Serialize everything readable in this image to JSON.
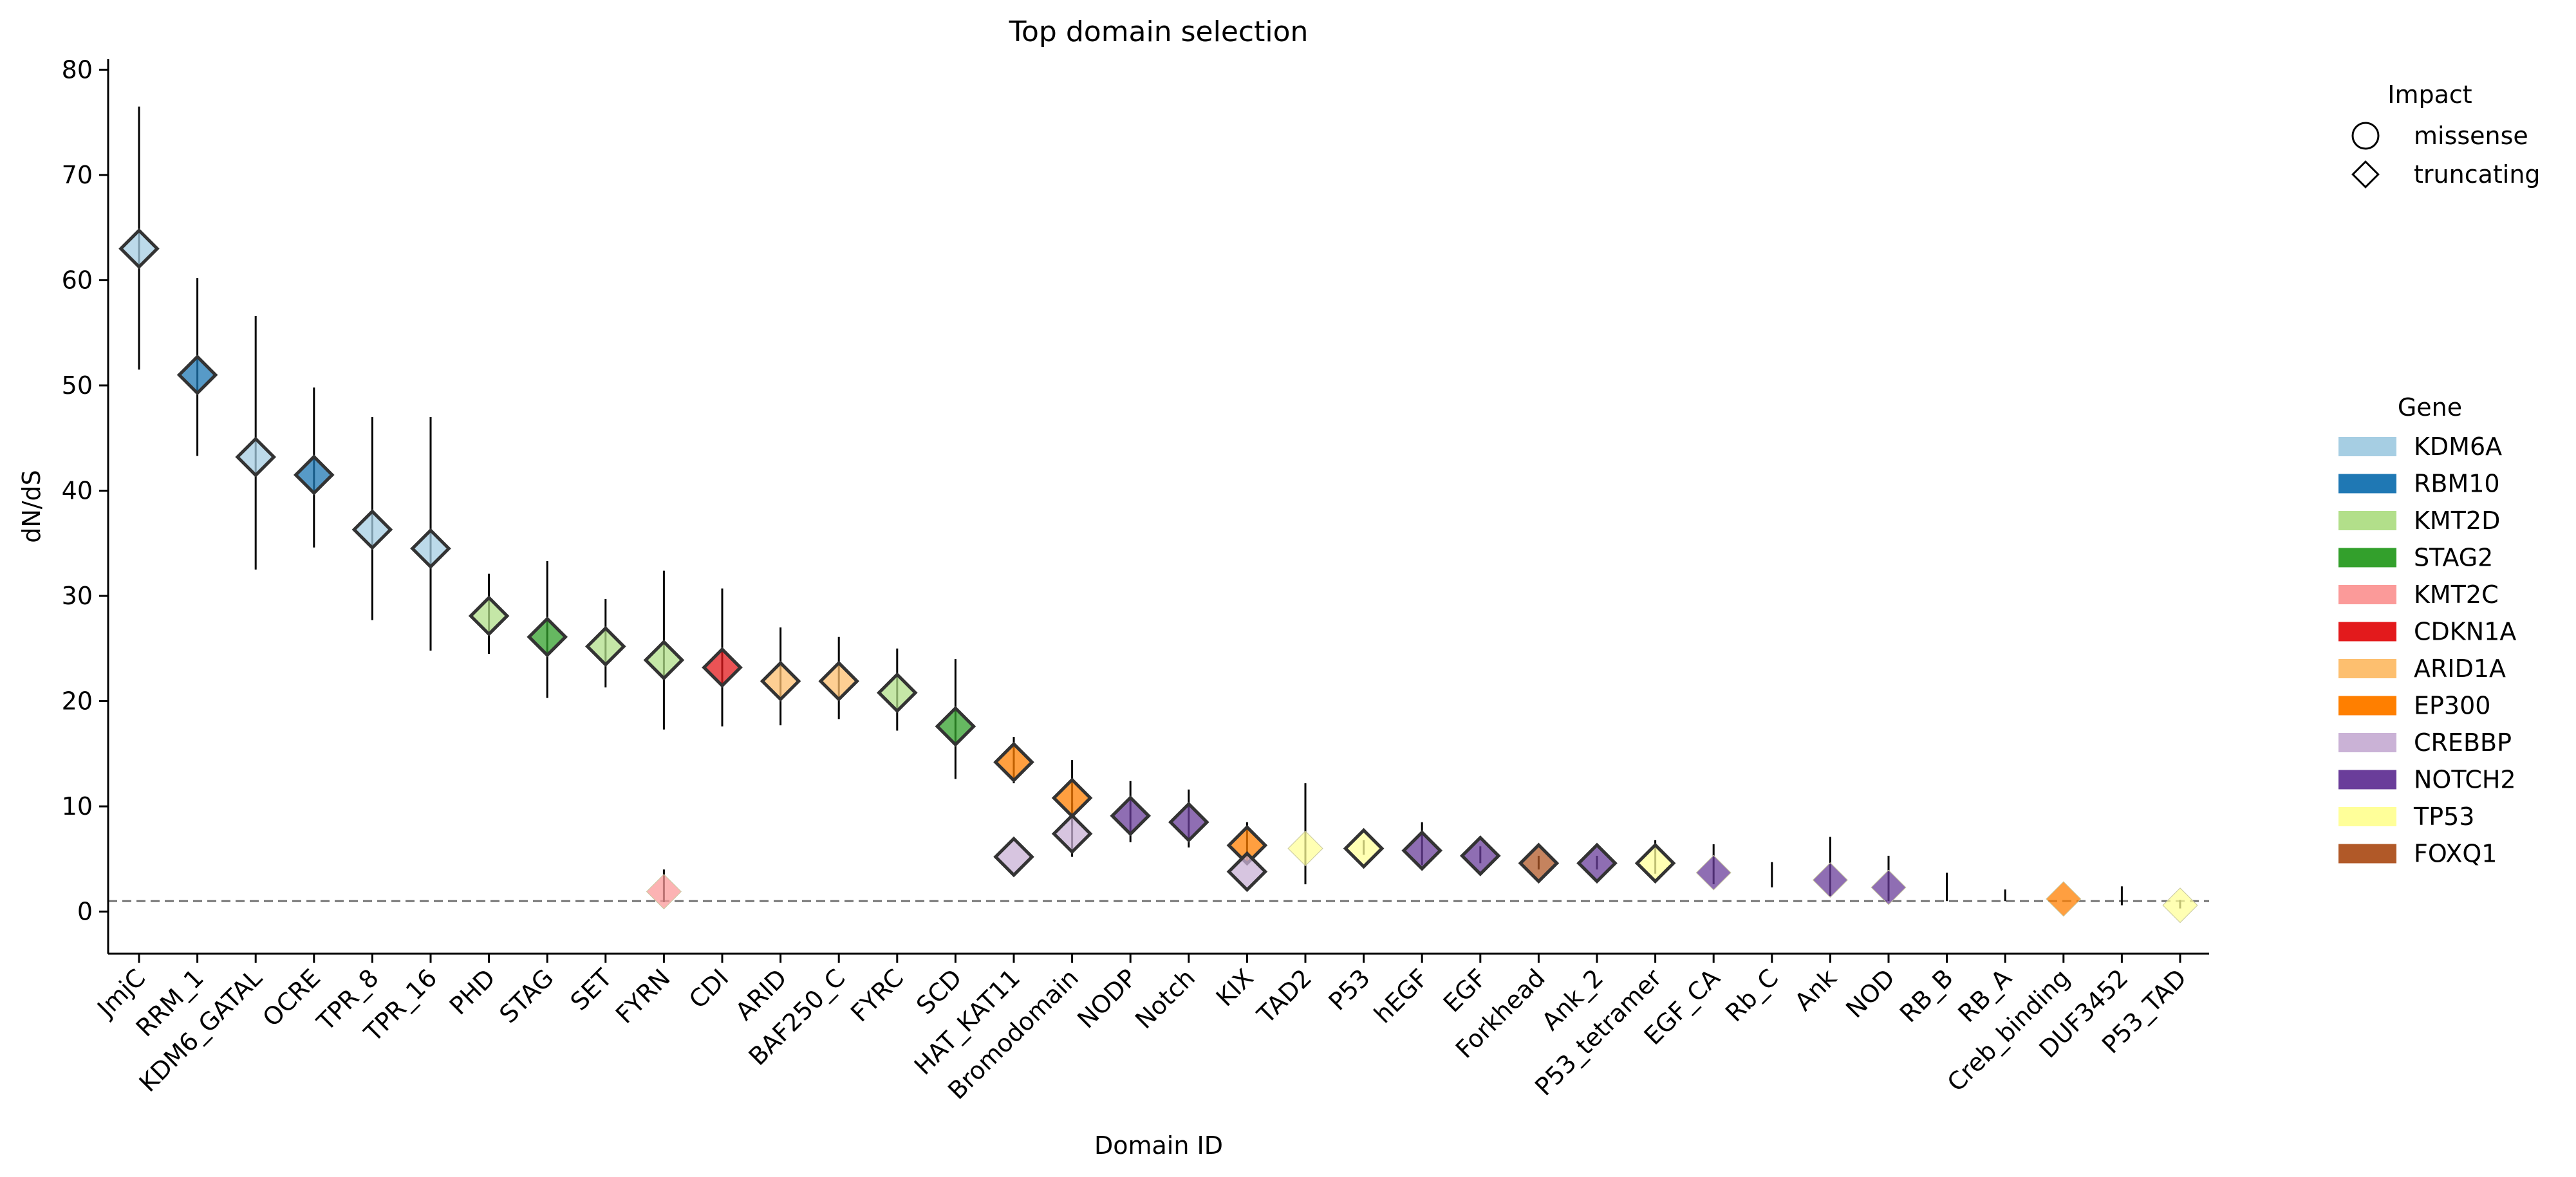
{
  "chart_data": {
    "type": "scatter",
    "title": "Top  domain selection",
    "xlabel": "Domain ID",
    "ylabel": "dN/dS",
    "ylim": [
      -4,
      81
    ],
    "yticks": [
      0,
      10,
      20,
      30,
      40,
      50,
      60,
      70,
      80
    ],
    "reference_line": 1,
    "categories": [
      "JmjC",
      "RRM_1",
      "KDM6_GATAL",
      "OCRE",
      "TPR_8",
      "TPR_16",
      "PHD",
      "STAG",
      "SET",
      "FYRN",
      "CDI",
      "ARID",
      "BAF250_C",
      "FYRC",
      "SCD",
      "HAT_KAT11",
      "Bromodomain",
      "NODP",
      "Notch",
      "KIX",
      "TAD2",
      "P53",
      "hEGF",
      "EGF",
      "Forkhead",
      "Ank_2",
      "P53_tetramer",
      "EGF_CA",
      "Rb_C",
      "Ank",
      "NOD",
      "RB_B",
      "RB_A",
      "Creb_binding",
      "DUF3452",
      "P53_TAD"
    ],
    "points": [
      {
        "domain": "JmjC",
        "gene": "KDM6A",
        "impact": "truncating",
        "value": 63,
        "low": 51.5,
        "high": 76.5
      },
      {
        "domain": "RRM_1",
        "gene": "RBM10",
        "impact": "truncating",
        "value": 51,
        "low": 43.3,
        "high": 60.2
      },
      {
        "domain": "KDM6_GATAL",
        "gene": "KDM6A",
        "impact": "truncating",
        "value": 43.2,
        "low": 32.5,
        "high": 56.6
      },
      {
        "domain": "OCRE",
        "gene": "RBM10",
        "impact": "truncating",
        "value": 41.5,
        "low": 34.6,
        "high": 49.8
      },
      {
        "domain": "TPR_8",
        "gene": "KDM6A",
        "impact": "truncating",
        "value": 36.3,
        "low": 27.7,
        "high": 47
      },
      {
        "domain": "TPR_16",
        "gene": "KDM6A",
        "impact": "truncating",
        "value": 34.5,
        "low": 24.8,
        "high": 47
      },
      {
        "domain": "PHD",
        "gene": "KMT2D",
        "impact": "truncating",
        "value": 28.1,
        "low": 24.5,
        "high": 32.1
      },
      {
        "domain": "STAG",
        "gene": "STAG2",
        "impact": "truncating",
        "value": 26.1,
        "low": 20.3,
        "high": 33.3
      },
      {
        "domain": "SET",
        "gene": "KMT2D",
        "impact": "truncating",
        "value": 25.2,
        "low": 21.3,
        "high": 29.7
      },
      {
        "domain": "FYRN",
        "gene": "KMT2D",
        "impact": "truncating",
        "value": 23.9,
        "low": 17.3,
        "high": 32.4
      },
      {
        "domain": "FYRN",
        "gene": "KMT2C",
        "impact": "missense",
        "value": 1.9,
        "low": 0.9,
        "high": 4
      },
      {
        "domain": "CDI",
        "gene": "CDKN1A",
        "impact": "truncating",
        "value": 23.2,
        "low": 17.6,
        "high": 30.7
      },
      {
        "domain": "ARID",
        "gene": "ARID1A",
        "impact": "truncating",
        "value": 21.9,
        "low": 17.7,
        "high": 27
      },
      {
        "domain": "BAF250_C",
        "gene": "ARID1A",
        "impact": "truncating",
        "value": 21.9,
        "low": 18.3,
        "high": 26.1
      },
      {
        "domain": "FYRC",
        "gene": "KMT2D",
        "impact": "truncating",
        "value": 20.8,
        "low": 17.2,
        "high": 25
      },
      {
        "domain": "SCD",
        "gene": "STAG2",
        "impact": "truncating",
        "value": 17.6,
        "low": 12.6,
        "high": 24
      },
      {
        "domain": "HAT_KAT11",
        "gene": "EP300",
        "impact": "truncating",
        "value": 14.2,
        "low": 12.2,
        "high": 16.6
      },
      {
        "domain": "HAT_KAT11",
        "gene": "CREBBP",
        "impact": "truncating",
        "value": 5.2,
        "low": 5.2,
        "high": 5.2
      },
      {
        "domain": "Bromodomain",
        "gene": "EP300",
        "impact": "truncating",
        "value": 10.8,
        "low": 8.2,
        "high": 14.4
      },
      {
        "domain": "Bromodomain",
        "gene": "CREBBP",
        "impact": "truncating",
        "value": 7.4,
        "low": 5.2,
        "high": 10.3
      },
      {
        "domain": "NODP",
        "gene": "NOTCH2",
        "impact": "truncating",
        "value": 9.1,
        "low": 6.6,
        "high": 12.4
      },
      {
        "domain": "Notch",
        "gene": "NOTCH2",
        "impact": "truncating",
        "value": 8.5,
        "low": 6.1,
        "high": 11.6
      },
      {
        "domain": "KIX",
        "gene": "EP300",
        "impact": "truncating",
        "value": 6.3,
        "low": 4.6,
        "high": 8.5
      },
      {
        "domain": "KIX",
        "gene": "CREBBP",
        "impact": "truncating",
        "value": 3.8,
        "low": 3.8,
        "high": 3.8
      },
      {
        "domain": "TAD2",
        "gene": "TP53",
        "impact": "missense",
        "value": 6,
        "low": 2.6,
        "high": 12.2
      },
      {
        "domain": "P53",
        "gene": "TP53",
        "impact": "truncating",
        "value": 6,
        "low": 5.4,
        "high": 6.8
      },
      {
        "domain": "hEGF",
        "gene": "NOTCH2",
        "impact": "truncating",
        "value": 5.8,
        "low": 4.4,
        "high": 8.5
      },
      {
        "domain": "EGF",
        "gene": "NOTCH2",
        "impact": "truncating",
        "value": 5.3,
        "low": 4.6,
        "high": 6.2
      },
      {
        "domain": "Forkhead",
        "gene": "FOXQ1",
        "impact": "truncating",
        "value": 4.6,
        "low": 4,
        "high": 5.3
      },
      {
        "domain": "Ank_2",
        "gene": "NOTCH2",
        "impact": "truncating",
        "value": 4.6,
        "low": 4,
        "high": 5.3
      },
      {
        "domain": "P53_tetramer",
        "gene": "TP53",
        "impact": "truncating",
        "value": 4.6,
        "low": 3.6,
        "high": 6.8
      },
      {
        "domain": "EGF_CA",
        "gene": "NOTCH2",
        "impact": "missense",
        "value": 3.7,
        "low": 2.6,
        "high": 6.4
      },
      {
        "domain": "Rb_C",
        "gene": "",
        "impact": "none",
        "value": null,
        "low": 2.3,
        "high": 4.7
      },
      {
        "domain": "Ank",
        "gene": "NOTCH2",
        "impact": "missense",
        "value": 3,
        "low": 1.5,
        "high": 7.1
      },
      {
        "domain": "NOD",
        "gene": "NOTCH2",
        "impact": "missense",
        "value": 2.3,
        "low": 1,
        "high": 5.3
      },
      {
        "domain": "RB_B",
        "gene": "",
        "impact": "none",
        "value": null,
        "low": 1,
        "high": 3.7
      },
      {
        "domain": "RB_A",
        "gene": "",
        "impact": "none",
        "value": null,
        "low": 1,
        "high": 2.1
      },
      {
        "domain": "Creb_binding",
        "gene": "EP300",
        "impact": "missense",
        "value": 1.2,
        "low": 1.2,
        "high": 1.2
      },
      {
        "domain": "DUF3452",
        "gene": "",
        "impact": "none",
        "value": null,
        "low": 0.6,
        "high": 2.4
      },
      {
        "domain": "P53_TAD",
        "gene": "TP53",
        "impact": "missense",
        "value": 0.6,
        "low": 0.3,
        "high": 1.1
      }
    ],
    "legend_impact": {
      "title": "Impact",
      "items": [
        {
          "label": "missense",
          "shape": "circle"
        },
        {
          "label": "truncating",
          "shape": "diamond"
        }
      ]
    },
    "legend_gene": {
      "title": "Gene",
      "items": [
        {
          "label": "KDM6A",
          "color": "#a6cee3"
        },
        {
          "label": "RBM10",
          "color": "#1f78b4"
        },
        {
          "label": "KMT2D",
          "color": "#b2df8a"
        },
        {
          "label": "STAG2",
          "color": "#33a02c"
        },
        {
          "label": "KMT2C",
          "color": "#fb9a99"
        },
        {
          "label": "CDKN1A",
          "color": "#e31a1c"
        },
        {
          "label": "ARID1A",
          "color": "#fdbf6f"
        },
        {
          "label": "EP300",
          "color": "#ff7f00"
        },
        {
          "label": "CREBBP",
          "color": "#cab2d6"
        },
        {
          "label": "NOTCH2",
          "color": "#6a3d9a"
        },
        {
          "label": "TP53",
          "color": "#ffff99"
        },
        {
          "label": "FOXQ1",
          "color": "#b15928"
        }
      ]
    }
  }
}
